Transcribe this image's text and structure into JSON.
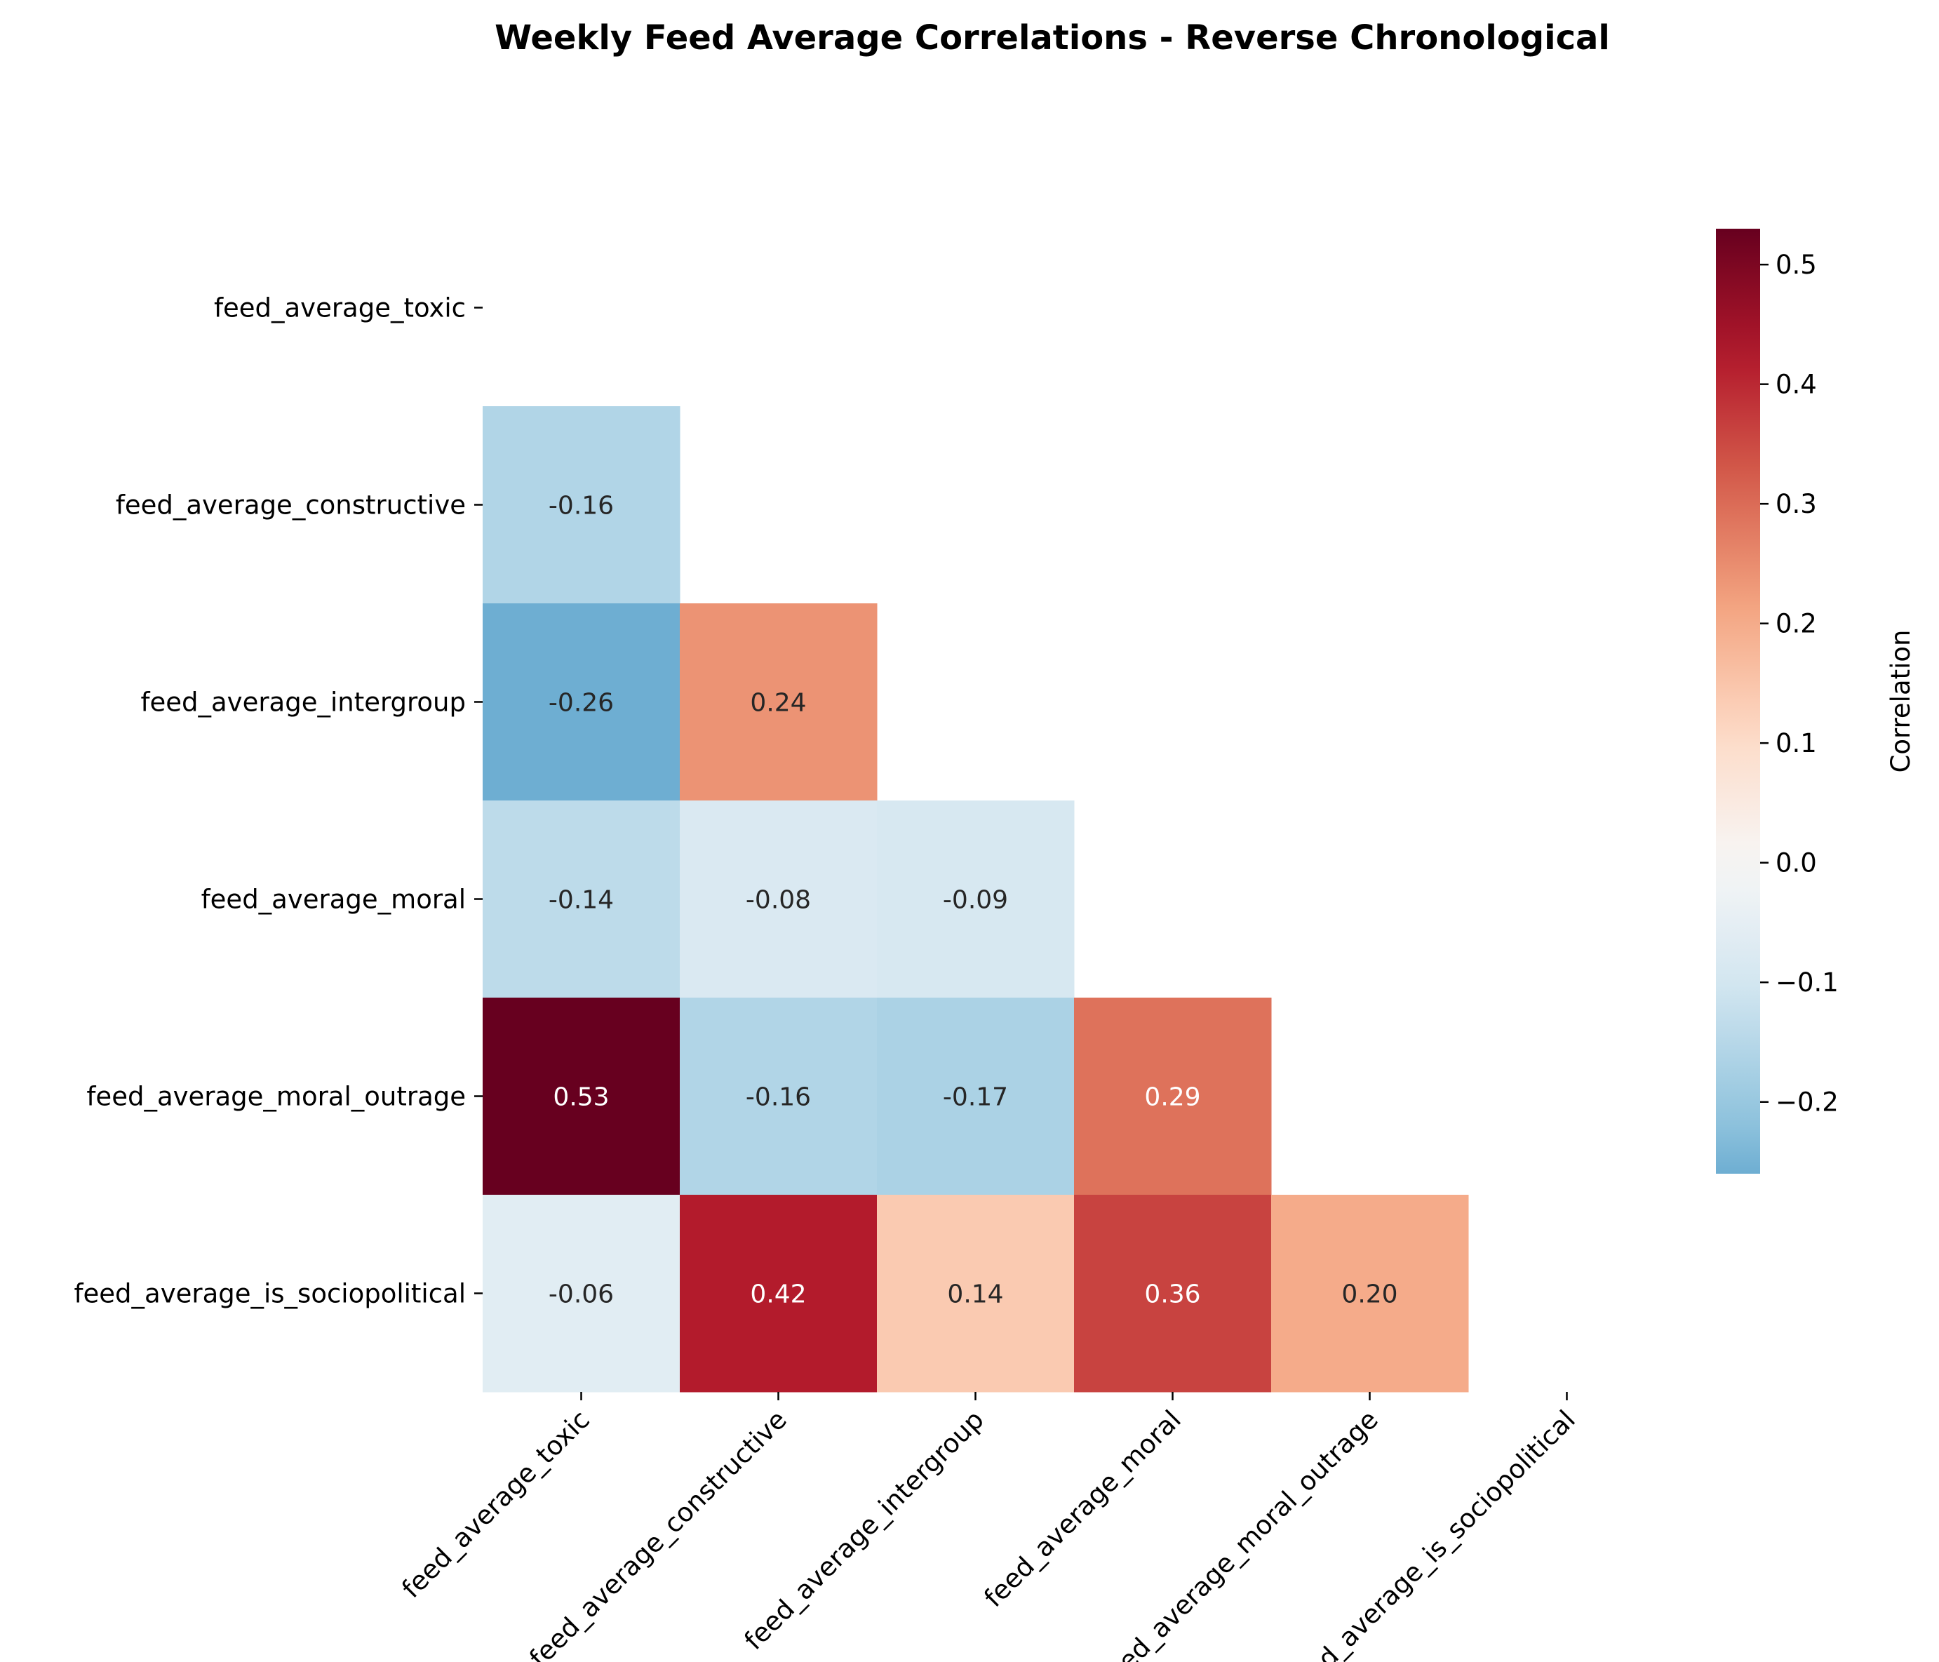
{
  "chart_data": {
    "type": "heatmap",
    "title": "Weekly Feed Average Correlations - Reverse Chronological",
    "variables": [
      "feed_average_toxic",
      "feed_average_constructive",
      "feed_average_intergroup",
      "feed_average_moral",
      "feed_average_moral_outrage",
      "feed_average_is_sociopolitical"
    ],
    "mask": "upper-triangle-including-diagonal",
    "cells": [
      {
        "row": 1,
        "col": 0,
        "value": -0.16,
        "label": "-0.16"
      },
      {
        "row": 2,
        "col": 0,
        "value": -0.26,
        "label": "-0.26"
      },
      {
        "row": 2,
        "col": 1,
        "value": 0.24,
        "label": "0.24"
      },
      {
        "row": 3,
        "col": 0,
        "value": -0.14,
        "label": "-0.14"
      },
      {
        "row": 3,
        "col": 1,
        "value": -0.08,
        "label": "-0.08"
      },
      {
        "row": 3,
        "col": 2,
        "value": -0.09,
        "label": "-0.09"
      },
      {
        "row": 4,
        "col": 0,
        "value": 0.53,
        "label": "0.53"
      },
      {
        "row": 4,
        "col": 1,
        "value": -0.16,
        "label": "-0.16"
      },
      {
        "row": 4,
        "col": 2,
        "value": -0.17,
        "label": "-0.17"
      },
      {
        "row": 4,
        "col": 3,
        "value": 0.29,
        "label": "0.29"
      },
      {
        "row": 5,
        "col": 0,
        "value": -0.06,
        "label": "-0.06"
      },
      {
        "row": 5,
        "col": 1,
        "value": 0.42,
        "label": "0.42"
      },
      {
        "row": 5,
        "col": 2,
        "value": 0.14,
        "label": "0.14"
      },
      {
        "row": 5,
        "col": 3,
        "value": 0.36,
        "label": "0.36"
      },
      {
        "row": 5,
        "col": 4,
        "value": 0.2,
        "label": "0.20"
      }
    ],
    "colorbar": {
      "label": "Correlation",
      "colormap": "RdBu_r",
      "center": 0,
      "vmin": -0.26,
      "vmax": 0.53,
      "ticks": [
        -0.2,
        -0.1,
        0.0,
        0.1,
        0.2,
        0.3,
        0.4,
        0.5
      ],
      "tick_labels": [
        "−0.2",
        "−0.1",
        "0.0",
        "0.1",
        "0.2",
        "0.3",
        "0.4",
        "0.5"
      ]
    }
  }
}
